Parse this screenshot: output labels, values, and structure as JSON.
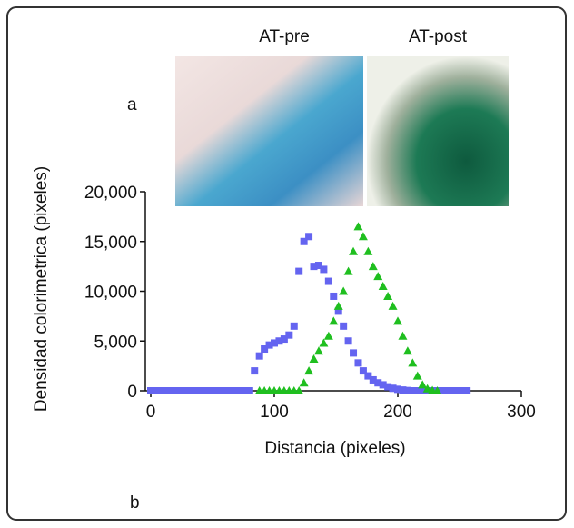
{
  "panel_labels": {
    "a": "a",
    "b": "b"
  },
  "photos": {
    "left": "AT-pre",
    "right": "AT-post"
  },
  "chart_data": {
    "type": "scatter",
    "xlabel": "Distancia (pixeles)",
    "ylabel": "Densidad colorimetrica (pixeles)",
    "xlim": [
      0,
      300
    ],
    "xticks": [
      0,
      100,
      200,
      300
    ],
    "ylim": [
      0,
      20000
    ],
    "yticks": [
      {
        "value": 0,
        "label": "0"
      },
      {
        "value": 5000,
        "label": "5,000"
      },
      {
        "value": 10000,
        "label": "10,000"
      },
      {
        "value": 15000,
        "label": "15,000"
      },
      {
        "value": 20000,
        "label": "20,000"
      }
    ],
    "series": [
      {
        "marker": "square",
        "color": "#6464f0",
        "x": [
          0,
          4,
          8,
          12,
          16,
          20,
          24,
          28,
          32,
          36,
          40,
          44,
          48,
          52,
          56,
          60,
          64,
          68,
          72,
          76,
          80,
          84,
          88,
          92,
          96,
          100,
          104,
          108,
          112,
          116,
          120,
          124,
          128,
          132,
          136,
          140,
          144,
          148,
          152,
          156,
          160,
          164,
          168,
          172,
          176,
          180,
          184,
          188,
          192,
          196,
          200,
          204,
          208,
          212,
          216,
          220,
          224,
          228,
          232,
          236,
          240,
          244,
          248,
          252,
          256
        ],
        "values": [
          0,
          0,
          0,
          0,
          0,
          0,
          0,
          0,
          0,
          0,
          0,
          0,
          0,
          0,
          0,
          0,
          0,
          0,
          0,
          0,
          0,
          2000,
          3500,
          4200,
          4600,
          4800,
          5000,
          5200,
          5600,
          6500,
          12000,
          15000,
          15500,
          12500,
          12600,
          12200,
          11000,
          9500,
          8000,
          6500,
          5000,
          3800,
          2800,
          2000,
          1500,
          1100,
          800,
          600,
          400,
          250,
          150,
          80,
          30,
          0,
          0,
          0,
          0,
          0,
          0,
          0,
          0,
          0,
          0,
          0,
          0
        ]
      },
      {
        "marker": "triangle",
        "color": "#1fbf1f",
        "x": [
          88,
          92,
          96,
          100,
          104,
          108,
          112,
          116,
          120,
          124,
          128,
          132,
          136,
          140,
          144,
          148,
          152,
          156,
          160,
          164,
          168,
          172,
          176,
          180,
          184,
          188,
          192,
          196,
          200,
          204,
          208,
          212,
          216,
          220,
          224,
          228,
          232
        ],
        "values": [
          0,
          0,
          0,
          0,
          0,
          0,
          0,
          0,
          0,
          800,
          2000,
          3200,
          4000,
          4800,
          5500,
          7000,
          8500,
          10000,
          12000,
          14000,
          16500,
          15500,
          14000,
          12500,
          11500,
          10500,
          9500,
          8500,
          7000,
          5500,
          4000,
          2800,
          1500,
          600,
          200,
          50,
          0
        ]
      }
    ]
  }
}
